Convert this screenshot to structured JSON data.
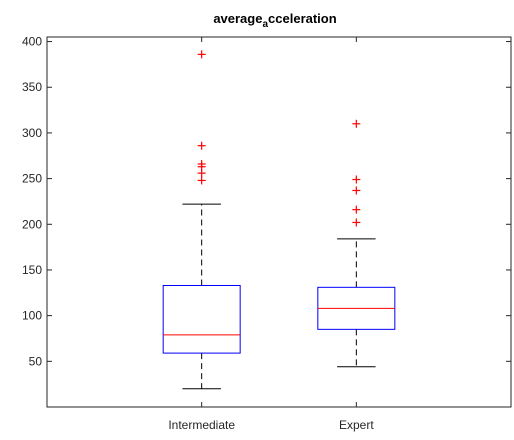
{
  "chart_data": {
    "type": "boxplot",
    "title_main": "average",
    "title_sub": "a",
    "title_rest": "cceleration",
    "ylim": [
      0,
      405
    ],
    "yticks": [
      50,
      100,
      150,
      200,
      250,
      300,
      350,
      400
    ],
    "categories": [
      "Intermediate",
      "Expert"
    ],
    "boxes": [
      {
        "category": "Intermediate",
        "whisker_low": 20,
        "q1": 59,
        "median": 79,
        "q3": 133,
        "whisker_high": 222,
        "outliers": [
          248,
          256,
          263,
          266,
          286,
          386
        ]
      },
      {
        "category": "Expert",
        "whisker_low": 44,
        "q1": 85,
        "median": 108,
        "q3": 131,
        "whisker_high": 184,
        "outliers": [
          202,
          216,
          237,
          249,
          310
        ]
      }
    ],
    "colors": {
      "box": "#0000ff",
      "median": "#ff0000",
      "whisker": "#000000",
      "outlier": "#ff0000",
      "axes": "#262626"
    }
  }
}
